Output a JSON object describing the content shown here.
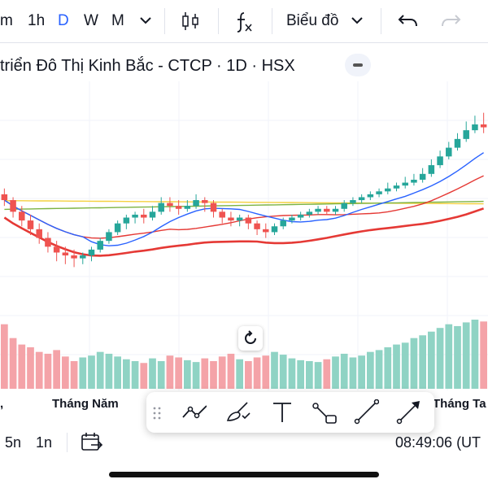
{
  "toolbar": {
    "intervals": [
      {
        "label": "m",
        "active": false
      },
      {
        "label": "1h",
        "active": false
      },
      {
        "label": "D",
        "active": true
      },
      {
        "label": "W",
        "active": false
      },
      {
        "label": "M",
        "active": false
      }
    ],
    "chart_type_label": "Biểu đồ"
  },
  "title": "triển Đô Thị Kinh Bắc - CTCP · 1D · HSX",
  "x_axis": {
    "labels": [
      "Tháng Năm",
      "Tháng Ta"
    ]
  },
  "bottom": {
    "ranges": [
      "5n",
      "1n"
    ],
    "time": "08:49:06 (UT"
  },
  "colors": {
    "up": "#26a69a",
    "down": "#ef5350",
    "vol_up": "#8fd3c4",
    "vol_down": "#f4a3a8",
    "ma_blue": "#2962ff",
    "ma_red": "#e53935",
    "ma_yellow": "#f4d03f",
    "ma_green": "#7cb342",
    "accent": "#2962ff"
  },
  "chart_data": {
    "type": "candlestick",
    "ylim": [
      0,
      100
    ],
    "candles": [
      [
        64,
        62,
        66,
        60
      ],
      [
        62,
        58,
        63,
        56
      ],
      [
        58,
        55,
        60,
        53
      ],
      [
        55,
        52,
        57,
        50
      ],
      [
        52,
        49,
        54,
        47
      ],
      [
        49,
        46,
        51,
        44
      ],
      [
        46,
        44,
        48,
        41
      ],
      [
        44,
        43,
        46,
        40
      ],
      [
        43,
        42,
        45,
        39
      ],
      [
        42,
        43,
        44,
        40
      ],
      [
        43,
        45,
        46,
        41
      ],
      [
        45,
        48,
        49,
        44
      ],
      [
        48,
        51,
        52,
        47
      ],
      [
        51,
        54,
        55,
        50
      ],
      [
        54,
        56,
        57,
        52
      ],
      [
        56,
        57,
        58,
        54
      ],
      [
        57,
        56,
        59,
        54
      ],
      [
        56,
        58,
        60,
        55
      ],
      [
        58,
        61,
        63,
        57
      ],
      [
        61,
        60,
        63,
        58
      ],
      [
        60,
        59,
        62,
        57
      ],
      [
        59,
        60,
        62,
        58
      ],
      [
        60,
        62,
        64,
        59
      ],
      [
        62,
        61,
        63,
        58
      ],
      [
        61,
        58,
        62,
        56
      ],
      [
        58,
        56,
        59,
        54
      ],
      [
        56,
        55,
        58,
        53
      ],
      [
        55,
        56,
        57,
        53
      ],
      [
        56,
        54,
        57,
        52
      ],
      [
        54,
        52,
        55,
        50
      ],
      [
        52,
        51,
        54,
        49
      ],
      [
        51,
        53,
        54,
        50
      ],
      [
        53,
        55,
        56,
        52
      ],
      [
        55,
        56,
        57,
        54
      ],
      [
        56,
        57,
        58,
        55
      ],
      [
        57,
        58,
        59,
        56
      ],
      [
        58,
        59,
        60,
        57
      ],
      [
        59,
        58,
        60,
        57
      ],
      [
        58,
        59,
        60,
        57
      ],
      [
        59,
        61,
        62,
        58
      ],
      [
        61,
        62,
        63,
        60
      ],
      [
        62,
        63,
        64,
        61
      ],
      [
        63,
        64,
        65,
        62
      ],
      [
        64,
        65,
        66,
        63
      ],
      [
        65,
        66,
        68,
        64
      ],
      [
        66,
        67,
        68,
        65
      ],
      [
        67,
        68,
        70,
        66
      ],
      [
        68,
        69,
        71,
        67
      ],
      [
        69,
        71,
        73,
        68
      ],
      [
        71,
        74,
        76,
        70
      ],
      [
        74,
        77,
        79,
        73
      ],
      [
        77,
        80,
        82,
        76
      ],
      [
        80,
        83,
        85,
        79
      ],
      [
        83,
        86,
        89,
        82
      ],
      [
        86,
        88,
        91,
        85
      ],
      [
        88,
        87,
        92,
        85
      ]
    ],
    "volume": [
      70,
      55,
      48,
      45,
      40,
      38,
      42,
      35,
      30,
      34,
      36,
      40,
      38,
      35,
      32,
      30,
      28,
      33,
      30,
      36,
      34,
      31,
      29,
      33,
      30,
      35,
      38,
      32,
      30,
      34,
      36,
      40,
      37,
      33,
      31,
      30,
      29,
      32,
      35,
      38,
      34,
      36,
      40,
      42,
      45,
      48,
      50,
      55,
      58,
      62,
      66,
      70,
      68,
      72,
      75,
      73
    ],
    "ma_lines": [
      "blue",
      "red",
      "yellow",
      "green",
      "red-thick"
    ]
  }
}
